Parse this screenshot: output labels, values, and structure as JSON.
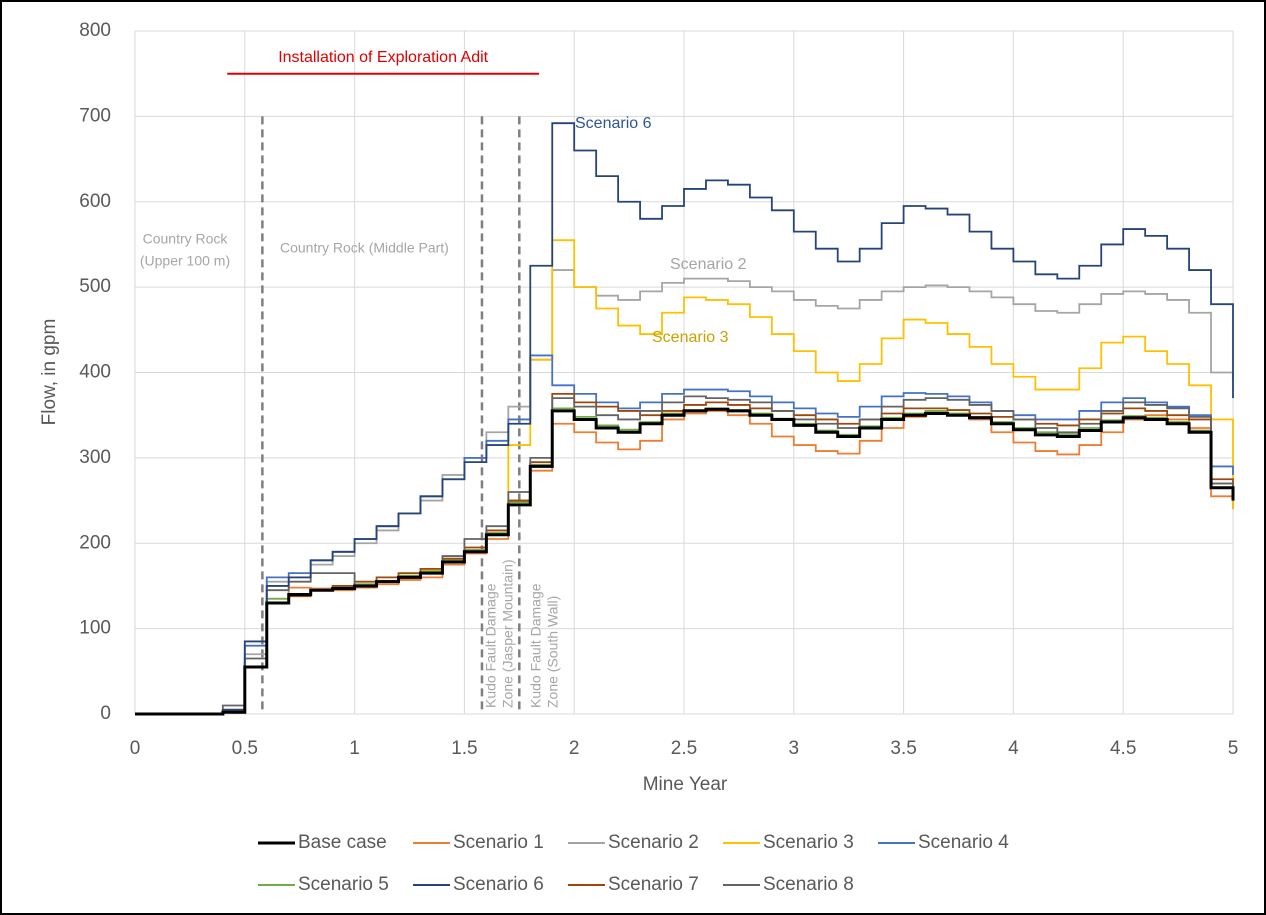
{
  "chart_data": {
    "type": "step-line",
    "x_label": "Mine Year",
    "y_label": "Flow, in gpm",
    "xlim": [
      0,
      5
    ],
    "ylim": [
      0,
      800
    ],
    "xticks": [
      0,
      0.5,
      1,
      1.5,
      2,
      2.5,
      3,
      3.5,
      4,
      4.5,
      5
    ],
    "yticks": [
      0,
      100,
      200,
      300,
      400,
      500,
      600,
      700,
      800
    ],
    "grid": true,
    "legend": "bottom",
    "x": [
      0,
      0.1,
      0.2,
      0.3,
      0.4,
      0.5,
      0.6,
      0.7,
      0.8,
      0.9,
      1,
      1.1,
      1.2,
      1.3,
      1.4,
      1.5,
      1.6,
      1.7,
      1.8,
      1.9,
      2,
      2.1,
      2.2,
      2.3,
      2.4,
      2.5,
      2.6,
      2.7,
      2.8,
      2.9,
      3,
      3.1,
      3.2,
      3.3,
      3.4,
      3.5,
      3.6,
      3.7,
      3.8,
      3.9,
      4,
      4.1,
      4.2,
      4.3,
      4.4,
      4.5,
      4.6,
      4.7,
      4.8,
      4.9,
      5
    ],
    "series": [
      {
        "name": "Base case",
        "color": "#000000",
        "values": [
          0,
          0,
          0,
          0,
          2,
          55,
          130,
          140,
          145,
          147,
          150,
          155,
          160,
          165,
          178,
          190,
          210,
          245,
          290,
          355,
          345,
          335,
          330,
          340,
          350,
          355,
          357,
          355,
          350,
          345,
          338,
          330,
          325,
          335,
          345,
          350,
          352,
          350,
          347,
          340,
          333,
          327,
          325,
          332,
          342,
          347,
          345,
          340,
          330,
          265,
          250
        ]
      },
      {
        "name": "Scenario 1",
        "color": "#ed7d31",
        "values": [
          0,
          0,
          0,
          0,
          3,
          55,
          135,
          148,
          147,
          145,
          148,
          152,
          157,
          160,
          175,
          188,
          205,
          250,
          285,
          340,
          330,
          318,
          310,
          320,
          345,
          352,
          355,
          350,
          340,
          325,
          315,
          308,
          305,
          320,
          335,
          348,
          355,
          352,
          345,
          330,
          318,
          308,
          304,
          315,
          330,
          345,
          350,
          345,
          335,
          255,
          240
        ]
      },
      {
        "name": "Scenario 2",
        "color": "#a5a5a5",
        "values": [
          0,
          0,
          0,
          0,
          5,
          70,
          155,
          160,
          175,
          185,
          200,
          215,
          235,
          250,
          280,
          300,
          330,
          360,
          415,
          520,
          500,
          490,
          485,
          495,
          505,
          510,
          510,
          507,
          500,
          495,
          485,
          478,
          475,
          485,
          495,
          500,
          502,
          500,
          495,
          488,
          480,
          472,
          470,
          480,
          492,
          495,
          492,
          485,
          470,
          400,
          390
        ]
      },
      {
        "name": "Scenario 3",
        "color": "#ffc000",
        "values": [
          0,
          0,
          0,
          0,
          3,
          55,
          130,
          140,
          145,
          148,
          152,
          155,
          162,
          168,
          180,
          192,
          215,
          315,
          415,
          555,
          500,
          475,
          455,
          445,
          470,
          488,
          485,
          480,
          465,
          445,
          425,
          400,
          390,
          410,
          440,
          462,
          458,
          445,
          430,
          410,
          395,
          380,
          380,
          405,
          435,
          442,
          425,
          410,
          385,
          345,
          240
        ]
      },
      {
        "name": "Scenario 4",
        "color": "#4472c4",
        "values": [
          0,
          0,
          0,
          0,
          5,
          80,
          160,
          165,
          180,
          190,
          205,
          220,
          235,
          255,
          275,
          300,
          320,
          345,
          420,
          385,
          375,
          365,
          358,
          365,
          375,
          380,
          380,
          378,
          372,
          365,
          358,
          352,
          348,
          360,
          372,
          376,
          375,
          372,
          365,
          355,
          350,
          345,
          345,
          355,
          365,
          370,
          365,
          360,
          350,
          290,
          280
        ]
      },
      {
        "name": "Scenario 5",
        "color": "#70ad47",
        "values": [
          0,
          0,
          0,
          0,
          2,
          55,
          135,
          140,
          145,
          148,
          152,
          156,
          162,
          167,
          180,
          192,
          212,
          248,
          292,
          358,
          348,
          338,
          333,
          342,
          352,
          356,
          358,
          356,
          352,
          346,
          340,
          332,
          327,
          337,
          347,
          352,
          355,
          352,
          348,
          342,
          335,
          330,
          328,
          335,
          344,
          349,
          347,
          342,
          332,
          270,
          255
        ]
      },
      {
        "name": "Scenario 6",
        "color": "#264478",
        "values": [
          0,
          0,
          0,
          0,
          5,
          85,
          150,
          160,
          180,
          190,
          205,
          220,
          235,
          255,
          275,
          295,
          315,
          340,
          525,
          692,
          660,
          630,
          600,
          580,
          595,
          615,
          625,
          620,
          605,
          590,
          565,
          545,
          530,
          545,
          575,
          595,
          592,
          585,
          565,
          545,
          530,
          515,
          510,
          525,
          550,
          568,
          560,
          545,
          520,
          480,
          370
        ]
      },
      {
        "name": "Scenario 7",
        "color": "#9e480e",
        "values": [
          0,
          0,
          0,
          0,
          3,
          55,
          130,
          138,
          145,
          150,
          155,
          160,
          165,
          170,
          182,
          195,
          215,
          250,
          295,
          375,
          365,
          360,
          355,
          350,
          355,
          362,
          365,
          362,
          358,
          355,
          350,
          345,
          340,
          345,
          352,
          358,
          358,
          356,
          352,
          348,
          345,
          340,
          338,
          345,
          352,
          358,
          355,
          350,
          345,
          275,
          260
        ]
      },
      {
        "name": "Scenario 8",
        "color": "#636363",
        "values": [
          0,
          0,
          0,
          0,
          10,
          65,
          145,
          155,
          165,
          165,
          150,
          155,
          160,
          165,
          185,
          205,
          220,
          260,
          300,
          370,
          360,
          350,
          345,
          355,
          365,
          372,
          370,
          368,
          365,
          355,
          345,
          340,
          335,
          345,
          360,
          368,
          370,
          368,
          362,
          355,
          345,
          335,
          330,
          340,
          355,
          365,
          362,
          358,
          348,
          270,
          260
        ]
      }
    ],
    "adit": {
      "label": "Installation of Exploration Adit",
      "x": [
        0.42,
        1.84
      ],
      "y": 750,
      "color": "#e00000"
    },
    "zones": {
      "boundaries": [
        0.58,
        1.58,
        1.75
      ],
      "labels": [
        [
          "Country Rock",
          "(Upper 100 m)"
        ],
        [
          "Country Rock (Middle Part)"
        ],
        [
          "Kudo Fault Damage",
          "Zone (Jasper Mountain)"
        ],
        [
          "Kudo Fault Damage",
          "Zone (South Wall)"
        ]
      ]
    },
    "annotations": [
      {
        "text": "Scenario 6",
        "color": "#2f5597"
      },
      {
        "text": "Scenario 2",
        "color": "#a5a5a5"
      },
      {
        "text": "Scenario 3",
        "color": "#c9a000"
      }
    ]
  }
}
